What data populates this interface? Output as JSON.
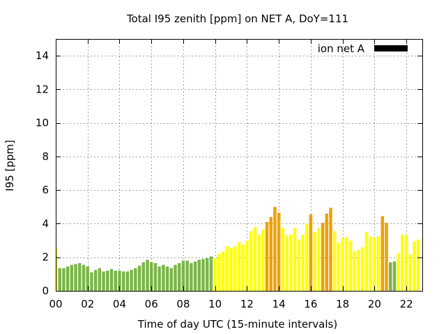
{
  "chart_data": {
    "type": "bar",
    "title": "Total I95 zenith [ppm] on NET A, DoY=111",
    "xlabel": "Time of day UTC (15-minute intervals)",
    "ylabel": "I95 [ppm]",
    "ylim": [
      0,
      15
    ],
    "xlim": [
      0,
      23
    ],
    "x_ticks": [
      "00",
      "02",
      "04",
      "06",
      "08",
      "10",
      "12",
      "14",
      "16",
      "18",
      "20",
      "22"
    ],
    "y_ticks": [
      "0",
      "2",
      "4",
      "6",
      "8",
      "10",
      "12",
      "14"
    ],
    "grid": true,
    "legend": {
      "placement": "top-right",
      "label": "ion net A",
      "color": "#000000"
    },
    "colors": {
      "green": "#7ab648",
      "yellow": "#ffff00",
      "orange": "#f0a000"
    },
    "interval_hours": 0.25,
    "values": [
      2.5,
      1.35,
      1.35,
      1.45,
      1.55,
      1.6,
      1.65,
      1.55,
      1.45,
      1.1,
      1.25,
      1.35,
      1.15,
      1.2,
      1.3,
      1.2,
      1.2,
      1.15,
      1.15,
      1.25,
      1.35,
      1.5,
      1.7,
      1.85,
      1.7,
      1.65,
      1.45,
      1.55,
      1.45,
      1.35,
      1.55,
      1.65,
      1.8,
      1.8,
      1.65,
      1.75,
      1.85,
      1.9,
      1.95,
      2.05,
      1.95,
      2.2,
      2.35,
      2.65,
      2.55,
      2.65,
      2.9,
      2.75,
      3.0,
      3.55,
      3.8,
      3.35,
      3.65,
      4.1,
      4.4,
      5.0,
      4.65,
      3.75,
      3.3,
      3.35,
      3.75,
      3.05,
      3.35,
      4.0,
      4.55,
      3.5,
      3.75,
      4.05,
      4.6,
      4.95,
      3.55,
      2.85,
      3.15,
      3.2,
      3.0,
      2.35,
      2.45,
      2.6,
      3.5,
      3.25,
      3.2,
      3.25,
      4.45,
      4.05,
      1.7,
      1.75,
      2.25,
      3.35,
      3.3,
      2.15,
      2.95,
      3.05
    ],
    "bar_colors": [
      "yellow",
      "green",
      "green",
      "green",
      "green",
      "green",
      "green",
      "green",
      "green",
      "green",
      "green",
      "green",
      "green",
      "green",
      "green",
      "green",
      "green",
      "green",
      "green",
      "green",
      "green",
      "green",
      "green",
      "green",
      "green",
      "green",
      "green",
      "green",
      "green",
      "green",
      "green",
      "green",
      "green",
      "green",
      "green",
      "green",
      "green",
      "green",
      "green",
      "green",
      "yellow",
      "yellow",
      "yellow",
      "yellow",
      "yellow",
      "yellow",
      "yellow",
      "yellow",
      "yellow",
      "yellow",
      "yellow",
      "yellow",
      "yellow",
      "orange",
      "orange",
      "orange",
      "orange",
      "yellow",
      "yellow",
      "yellow",
      "yellow",
      "yellow",
      "yellow",
      "yellow",
      "orange",
      "yellow",
      "yellow",
      "orange",
      "orange",
      "orange",
      "yellow",
      "yellow",
      "yellow",
      "yellow",
      "yellow",
      "yellow",
      "yellow",
      "yellow",
      "yellow",
      "yellow",
      "yellow",
      "yellow",
      "orange",
      "orange",
      "green",
      "green",
      "yellow",
      "yellow",
      "yellow",
      "yellow",
      "yellow",
      "yellow"
    ]
  }
}
